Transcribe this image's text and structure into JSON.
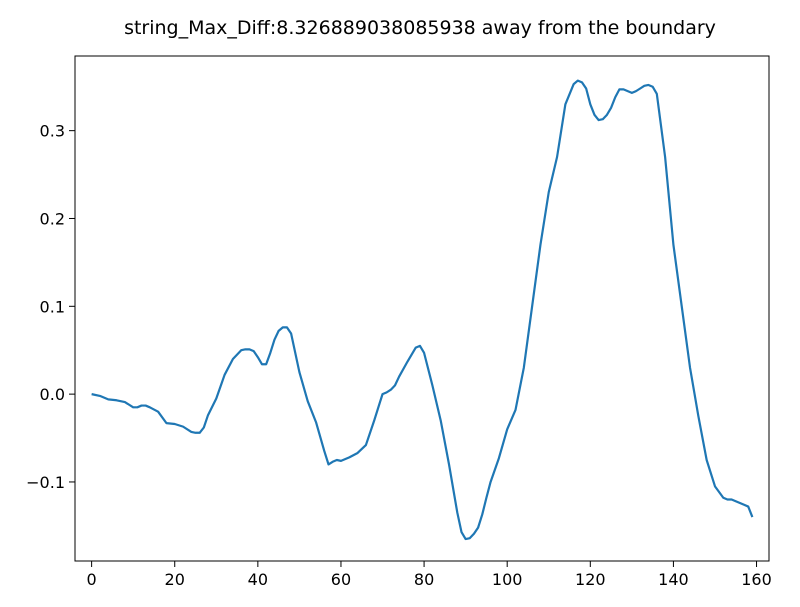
{
  "chart_data": {
    "type": "line",
    "title": "string_Max_Diff:8.326889038085938 away from the boundary",
    "xlabel": "",
    "ylabel": "",
    "xlim": [
      -4,
      163
    ],
    "ylim": [
      -0.19,
      0.385
    ],
    "grid": false,
    "x_ticks": [
      0,
      20,
      40,
      60,
      80,
      100,
      120,
      140,
      160
    ],
    "x_tick_labels": [
      "0",
      "20",
      "40",
      "60",
      "80",
      "100",
      "120",
      "140",
      "160"
    ],
    "y_ticks": [
      -0.1,
      0.0,
      0.1,
      0.2,
      0.3
    ],
    "y_tick_labels": [
      "−0.1",
      "0.0",
      "0.1",
      "0.2",
      "0.3"
    ],
    "series": [
      {
        "color": "#1f77b4",
        "x": [
          0,
          2,
          4,
          6,
          8,
          10,
          11,
          12,
          13,
          14,
          16,
          18,
          20,
          22,
          24,
          25,
          26,
          27,
          28,
          30,
          32,
          34,
          36,
          37,
          38,
          39,
          40,
          41,
          42,
          43,
          44,
          45,
          46,
          47,
          48,
          50,
          52,
          54,
          56,
          57,
          58,
          59,
          60,
          62,
          64,
          66,
          68,
          70,
          71,
          72,
          73,
          74,
          76,
          78,
          79,
          80,
          82,
          84,
          86,
          88,
          89,
          90,
          91,
          92,
          93,
          94,
          95,
          96,
          98,
          100,
          102,
          104,
          106,
          108,
          110,
          112,
          114,
          116,
          117,
          118,
          119,
          120,
          121,
          122,
          123,
          124,
          125,
          126,
          127,
          128,
          129,
          130,
          131,
          132,
          133,
          134,
          135,
          136,
          138,
          140,
          142,
          144,
          146,
          148,
          150,
          152,
          153,
          154,
          155,
          156,
          157,
          158,
          159
        ],
        "y": [
          0.0,
          -0.002,
          -0.006,
          -0.007,
          -0.009,
          -0.015,
          -0.015,
          -0.013,
          -0.013,
          -0.015,
          -0.02,
          -0.033,
          -0.034,
          -0.037,
          -0.043,
          -0.044,
          -0.044,
          -0.038,
          -0.024,
          -0.005,
          0.022,
          0.04,
          0.05,
          0.051,
          0.051,
          0.049,
          0.042,
          0.034,
          0.034,
          0.047,
          0.062,
          0.072,
          0.076,
          0.076,
          0.069,
          0.025,
          -0.008,
          -0.032,
          -0.065,
          -0.08,
          -0.077,
          -0.075,
          -0.076,
          -0.072,
          -0.067,
          -0.058,
          -0.03,
          0.0,
          0.002,
          0.005,
          0.01,
          0.02,
          0.037,
          0.053,
          0.055,
          0.047,
          0.01,
          -0.03,
          -0.08,
          -0.135,
          -0.157,
          -0.165,
          -0.164,
          -0.159,
          -0.152,
          -0.137,
          -0.118,
          -0.1,
          -0.073,
          -0.04,
          -0.018,
          0.03,
          0.1,
          0.17,
          0.23,
          0.27,
          0.33,
          0.353,
          0.357,
          0.355,
          0.348,
          0.33,
          0.318,
          0.312,
          0.313,
          0.318,
          0.326,
          0.338,
          0.347,
          0.347,
          0.345,
          0.343,
          0.345,
          0.348,
          0.351,
          0.352,
          0.35,
          0.342,
          0.27,
          0.17,
          0.1,
          0.03,
          -0.025,
          -0.075,
          -0.105,
          -0.118,
          -0.12,
          -0.12,
          -0.122,
          -0.124,
          -0.126,
          -0.128,
          -0.14
        ]
      }
    ]
  }
}
